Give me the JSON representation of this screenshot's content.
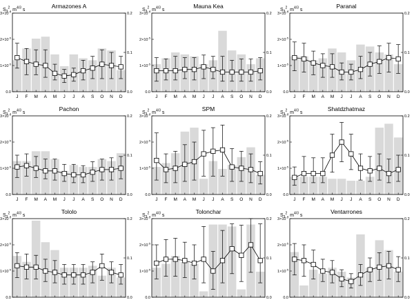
{
  "figure": {
    "ylabel": {
      "base": "S",
      "sub": "3",
      "sup": "2",
      "unit": ", m",
      "unit_sup": "4/3",
      "unit_tail": " s"
    },
    "left_ticks": [
      "0.0",
      "1×10",
      "2×10",
      "3×10"
    ],
    "left_tick_exp": "-5",
    "right_ticks": [
      "0.0",
      "0.1",
      "0.2"
    ]
  },
  "chart_data": [
    {
      "type": "bar+line-errorbar",
      "title": "Armazones A",
      "categories": [
        "J",
        "F",
        "M",
        "A",
        "M",
        "J",
        "J",
        "A",
        "S",
        "O",
        "N",
        "D"
      ],
      "bars": [
        0.08,
        0.11,
        0.135,
        0.14,
        0.095,
        0.065,
        0.095,
        0.085,
        0.08,
        0.11,
        0.105,
        0.055
      ],
      "line": [
        1.3e-05,
        1.15e-05,
        1.05e-05,
        1e-05,
        7e-06,
        6e-06,
        6.5e-06,
        8e-06,
        9e-06,
        1.05e-05,
        1e-05,
        9.5e-06
      ],
      "err_low": [
        9e-06,
        6.5e-06,
        6.5e-06,
        5.5e-06,
        4.5e-06,
        3.5e-06,
        4e-06,
        4.5e-06,
        5e-06,
        5e-06,
        5e-06,
        5e-06
      ],
      "err_high": [
        1.85e-05,
        1.65e-05,
        1.6e-05,
        1.6e-05,
        1.05e-05,
        8.5e-06,
        9e-06,
        1.2e-05,
        1.35e-05,
        1.6e-05,
        1.5e-05,
        1.35e-05
      ],
      "ylim_left": [
        0,
        3e-05
      ],
      "ylim_right": [
        0,
        0.2
      ]
    },
    {
      "type": "bar+line-errorbar",
      "title": "Mauna Kea",
      "categories": [
        "J",
        "F",
        "M",
        "A",
        "M",
        "J",
        "J",
        "A",
        "S",
        "O",
        "N",
        "D"
      ],
      "bars": [
        0.07,
        0.085,
        0.1,
        0.095,
        0.09,
        0.07,
        0.08,
        0.155,
        0.105,
        0.095,
        0.07,
        0.085
      ],
      "line": [
        8e-06,
        8e-06,
        8e-06,
        8.5e-06,
        8.5e-06,
        9.5e-06,
        8.5e-06,
        7.5e-06,
        7.5e-06,
        7.5e-06,
        7.5e-06,
        8e-06
      ],
      "err_low": [
        4e-06,
        4.5e-06,
        4.5e-06,
        5e-06,
        4.5e-06,
        5e-06,
        5e-06,
        4e-06,
        4e-06,
        4e-06,
        4e-06,
        4.5e-06
      ],
      "err_high": [
        1.3e-05,
        1.25e-05,
        1.35e-05,
        1.3e-05,
        1.3e-05,
        1.4e-05,
        1.35e-05,
        1.35e-05,
        1.2e-05,
        1.25e-05,
        1.25e-05,
        1.3e-05
      ],
      "ylim_left": [
        0,
        3e-05
      ],
      "ylim_right": [
        0,
        0.2
      ]
    },
    {
      "type": "bar+line-errorbar",
      "title": "Paranal",
      "categories": [
        "J",
        "F",
        "M",
        "A",
        "M",
        "J",
        "J",
        "A",
        "S",
        "O",
        "N",
        "D"
      ],
      "bars": [
        0.09,
        0.09,
        0.08,
        0.085,
        0.11,
        0.1,
        0.08,
        0.12,
        0.115,
        0.1,
        0.095,
        0.07
      ],
      "line": [
        1.3e-05,
        1.25e-05,
        1.1e-05,
        1e-05,
        9.5e-06,
        7.5e-06,
        7.5e-06,
        8.5e-06,
        1.05e-05,
        1.15e-05,
        1.3e-05,
        1.25e-05
      ],
      "err_low": [
        8e-06,
        7.5e-06,
        6.5e-06,
        5.5e-06,
        5.5e-06,
        4.5e-06,
        4.5e-06,
        5e-06,
        6e-06,
        7e-06,
        7.5e-06,
        7e-06
      ],
      "err_high": [
        1.9e-05,
        1.85e-05,
        1.55e-05,
        1.45e-05,
        1.45e-05,
        1.1e-05,
        1.05e-05,
        1.35e-05,
        1.5e-05,
        1.75e-05,
        1.85e-05,
        1.8e-05
      ],
      "ylim_left": [
        0,
        3e-05
      ],
      "ylim_right": [
        0,
        0.2
      ]
    },
    {
      "type": "bar+line-errorbar",
      "title": "Pachon",
      "categories": [
        "J",
        "F",
        "M",
        "A",
        "M",
        "J",
        "J",
        "A",
        "S",
        "O",
        "N",
        "D"
      ],
      "bars": [
        0.085,
        0.085,
        0.11,
        0.11,
        0.09,
        0.06,
        0.075,
        0.07,
        0.07,
        0.09,
        0.085,
        0.105
      ],
      "line": [
        1.05e-05,
        1.1e-05,
        1e-05,
        9e-06,
        9e-06,
        8e-06,
        7.5e-06,
        7.5e-06,
        8.5e-06,
        9.5e-06,
        9.5e-06,
        1e-05
      ],
      "err_low": [
        6.5e-06,
        7e-06,
        6.5e-06,
        6e-06,
        5.5e-06,
        5e-06,
        4.5e-06,
        4.5e-06,
        5e-06,
        5.5e-06,
        5.5e-06,
        6e-06
      ],
      "err_high": [
        1.5e-05,
        1.55e-05,
        1.45e-05,
        1.35e-05,
        1.35e-05,
        1.15e-05,
        1.15e-05,
        1.1e-05,
        1.25e-05,
        1.35e-05,
        1.4e-05,
        1.45e-05
      ],
      "ylim_left": [
        0,
        3e-05
      ],
      "ylim_right": [
        0,
        0.2
      ]
    },
    {
      "type": "bar+line-errorbar",
      "title": "SPM",
      "categories": [
        "J",
        "F",
        "M",
        "A",
        "M",
        "J",
        "J",
        "A",
        "S",
        "O",
        "N",
        "D"
      ],
      "bars": [
        0.07,
        0.08,
        0.105,
        0.16,
        0.17,
        0.04,
        0.085,
        0.065,
        0.075,
        0.095,
        0.12,
        0.05
      ],
      "line": [
        1.3e-05,
        9.5e-06,
        1e-05,
        1.15e-05,
        1.25e-05,
        1.55e-05,
        1.65e-05,
        1.7e-05,
        1.05e-05,
        1e-05,
        9.5e-06,
        8e-06
      ],
      "err_low": [
        5.5e-06,
        4.5e-06,
        4.5e-06,
        5e-06,
        5.5e-06,
        7e-06,
        7e-06,
        7e-06,
        5e-06,
        5e-06,
        4.5e-06,
        4e-06
      ],
      "err_high": [
        2.35e-05,
        1.55e-05,
        1.65e-05,
        1.9e-05,
        2e-05,
        2.45e-05,
        2.55e-05,
        2.65e-05,
        1.75e-05,
        1.65e-05,
        1.55e-05,
        1.25e-05
      ],
      "ylim_left": [
        0,
        3e-05
      ],
      "ylim_right": [
        0,
        0.2
      ]
    },
    {
      "type": "bar+line-errorbar",
      "title": "Shatdzhatmaz",
      "categories": [
        "J",
        "F",
        "M",
        "A",
        "M",
        "J",
        "J",
        "A",
        "S",
        "O",
        "N",
        "D"
      ],
      "bars": [
        0.045,
        0.045,
        0.045,
        0.045,
        0.04,
        0.04,
        0.035,
        0.035,
        0.045,
        0.17,
        0.18,
        0.145
      ],
      "line": [
        6.5e-06,
        8e-06,
        8e-06,
        8e-06,
        1.5e-05,
        2e-05,
        1.55e-05,
        1e-05,
        9e-06,
        1e-05,
        8e-06,
        9.5e-06
      ],
      "err_low": [
        3.5e-06,
        4.5e-06,
        4.5e-06,
        4.5e-06,
        8.5e-06,
        1.25e-05,
        9.5e-06,
        5.5e-06,
        5e-06,
        5.5e-06,
        4.5e-06,
        5e-06
      ],
      "err_high": [
        1.05e-05,
        1.45e-05,
        1.4e-05,
        1.4e-05,
        2.3e-05,
        2.75e-05,
        2.3e-05,
        1.55e-05,
        1.45e-05,
        1.55e-05,
        1.35e-05,
        1.5e-05
      ],
      "ylim_left": [
        0,
        3e-05
      ],
      "ylim_right": [
        0,
        0.2
      ]
    },
    {
      "type": "bar+line-errorbar",
      "title": "Tololo",
      "categories": [
        "J",
        "F",
        "M",
        "A",
        "M",
        "J",
        "J",
        "A",
        "S",
        "O",
        "N",
        "D"
      ],
      "bars": [
        0.105,
        0.09,
        0.195,
        0.14,
        0.12,
        0.075,
        0.075,
        0.075,
        0.08,
        0.055,
        0.075,
        0.05
      ],
      "line": [
        1.2e-05,
        1.15e-05,
        1.15e-05,
        1e-05,
        9.5e-06,
        8.5e-06,
        8.5e-06,
        8.5e-06,
        9.5e-06,
        1.2e-05,
        9.5e-06,
        8.5e-06
      ],
      "err_low": [
        7.5e-06,
        7e-06,
        7e-06,
        6e-06,
        5.5e-06,
        5e-06,
        5e-06,
        5e-06,
        5.5e-06,
        6.5e-06,
        5.5e-06,
        5e-06
      ],
      "err_high": [
        1.7e-05,
        1.65e-05,
        1.6e-05,
        1.45e-05,
        1.4e-05,
        1.25e-05,
        1.25e-05,
        1.25e-05,
        1.35e-05,
        1.65e-05,
        1.35e-05,
        1.25e-05
      ],
      "ylim_left": [
        0,
        3e-05
      ],
      "ylim_right": [
        0,
        0.2
      ]
    },
    {
      "type": "bar+line-errorbar",
      "title": "Tolonchar",
      "categories": [
        "J",
        "F",
        "M",
        "A",
        "M",
        "J",
        "J",
        "A",
        "S",
        "O",
        "N",
        "D"
      ],
      "bars": [
        0.075,
        0.085,
        0.105,
        0.09,
        0.085,
        0.015,
        0.185,
        0.185,
        0.18,
        0.02,
        0.185,
        0.065
      ],
      "line": [
        1.3e-05,
        1.45e-05,
        1.45e-05,
        1.4e-05,
        1.3e-05,
        1.45e-05,
        1e-05,
        1.4e-05,
        1.85e-05,
        1.6e-05,
        2e-05,
        1.4e-05
      ],
      "err_low": [
        7e-06,
        8e-06,
        8e-06,
        7.5e-06,
        7e-06,
        5.5e-06,
        3e-06,
        5.5e-06,
        9e-06,
        6e-06,
        9.5e-06,
        5.5e-06
      ],
      "err_high": [
        2e-05,
        2.2e-05,
        2.25e-05,
        2.1e-05,
        2e-05,
        2.7e-05,
        1.75e-05,
        2.55e-05,
        2.8e-05,
        2.75e-05,
        3e-05,
        2.8e-05
      ],
      "ylim_left": [
        0,
        3e-05
      ],
      "ylim_right": [
        0,
        0.2
      ]
    },
    {
      "type": "bar+line-errorbar",
      "title": "Ventarrones",
      "categories": [
        "J",
        "F",
        "M",
        "A",
        "M",
        "J",
        "J",
        "A",
        "S",
        "O",
        "N",
        "D"
      ],
      "bars": [
        0.115,
        0.03,
        0.07,
        0.06,
        0.075,
        0.065,
        0.05,
        0.16,
        0.075,
        0.145,
        0.12,
        0.065
      ],
      "line": [
        1.45e-05,
        1.4e-05,
        1.25e-05,
        1e-05,
        9.5e-06,
        7e-06,
        6e-06,
        8.5e-06,
        1.05e-05,
        1.15e-05,
        1.2e-05,
        1.05e-05
      ],
      "err_low": [
        8.5e-06,
        8e-06,
        7e-06,
        6e-06,
        5.5e-06,
        4e-06,
        3.5e-06,
        4.5e-06,
        6e-06,
        6.5e-06,
        7e-06,
        6e-06
      ],
      "err_high": [
        2.05e-05,
        2e-05,
        1.8e-05,
        1.45e-05,
        1.4e-05,
        1.05e-05,
        9e-06,
        1.25e-05,
        1.5e-05,
        1.7e-05,
        1.75e-05,
        1.55e-05
      ],
      "ylim_left": [
        0,
        3e-05
      ],
      "ylim_right": [
        0,
        0.2
      ]
    }
  ]
}
